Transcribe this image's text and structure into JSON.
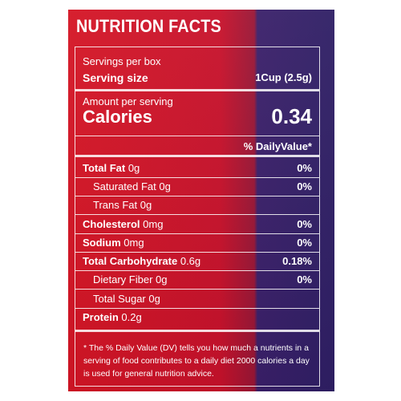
{
  "title": "NUTRITION FACTS",
  "servings_per_box_label": "Servings per box",
  "serving_size": {
    "label": "Serving size",
    "value": "1Cup (2.5g)"
  },
  "amount_per_serving_label": "Amount per serving",
  "calories": {
    "label": "Calories",
    "value": "0.34"
  },
  "daily_value_header": "% DailyValue*",
  "nutrients": [
    {
      "name": "Total Fat",
      "amount": "0g",
      "dv": "0%"
    },
    {
      "name": "Saturated Fat",
      "amount": "0g",
      "dv": "0%"
    },
    {
      "name": "Trans Fat",
      "amount": "0g",
      "dv": ""
    },
    {
      "name": "Cholesterol",
      "amount": "0mg",
      "dv": "0%"
    },
    {
      "name": "Sodium",
      "amount": "0mg",
      "dv": "0%"
    },
    {
      "name": "Total Carbohydrate",
      "amount": "0.6g",
      "dv": "0.18%"
    },
    {
      "name": "Dietary Fiber",
      "amount": "0g",
      "dv": "0%"
    },
    {
      "name": "Total Sugar",
      "amount": "0g",
      "dv": ""
    },
    {
      "name": "Protein",
      "amount": "0.2g",
      "dv": ""
    }
  ],
  "footnote": "* The % Daily Value (DV) tells you how much a nutrients in a serving of food contributes to a daily diet 2000 calories a day is used for general nutrition advice.",
  "colors": {
    "left_panel": "#d41222",
    "right_panel": "#2f1f66",
    "text": "#ffffff"
  }
}
